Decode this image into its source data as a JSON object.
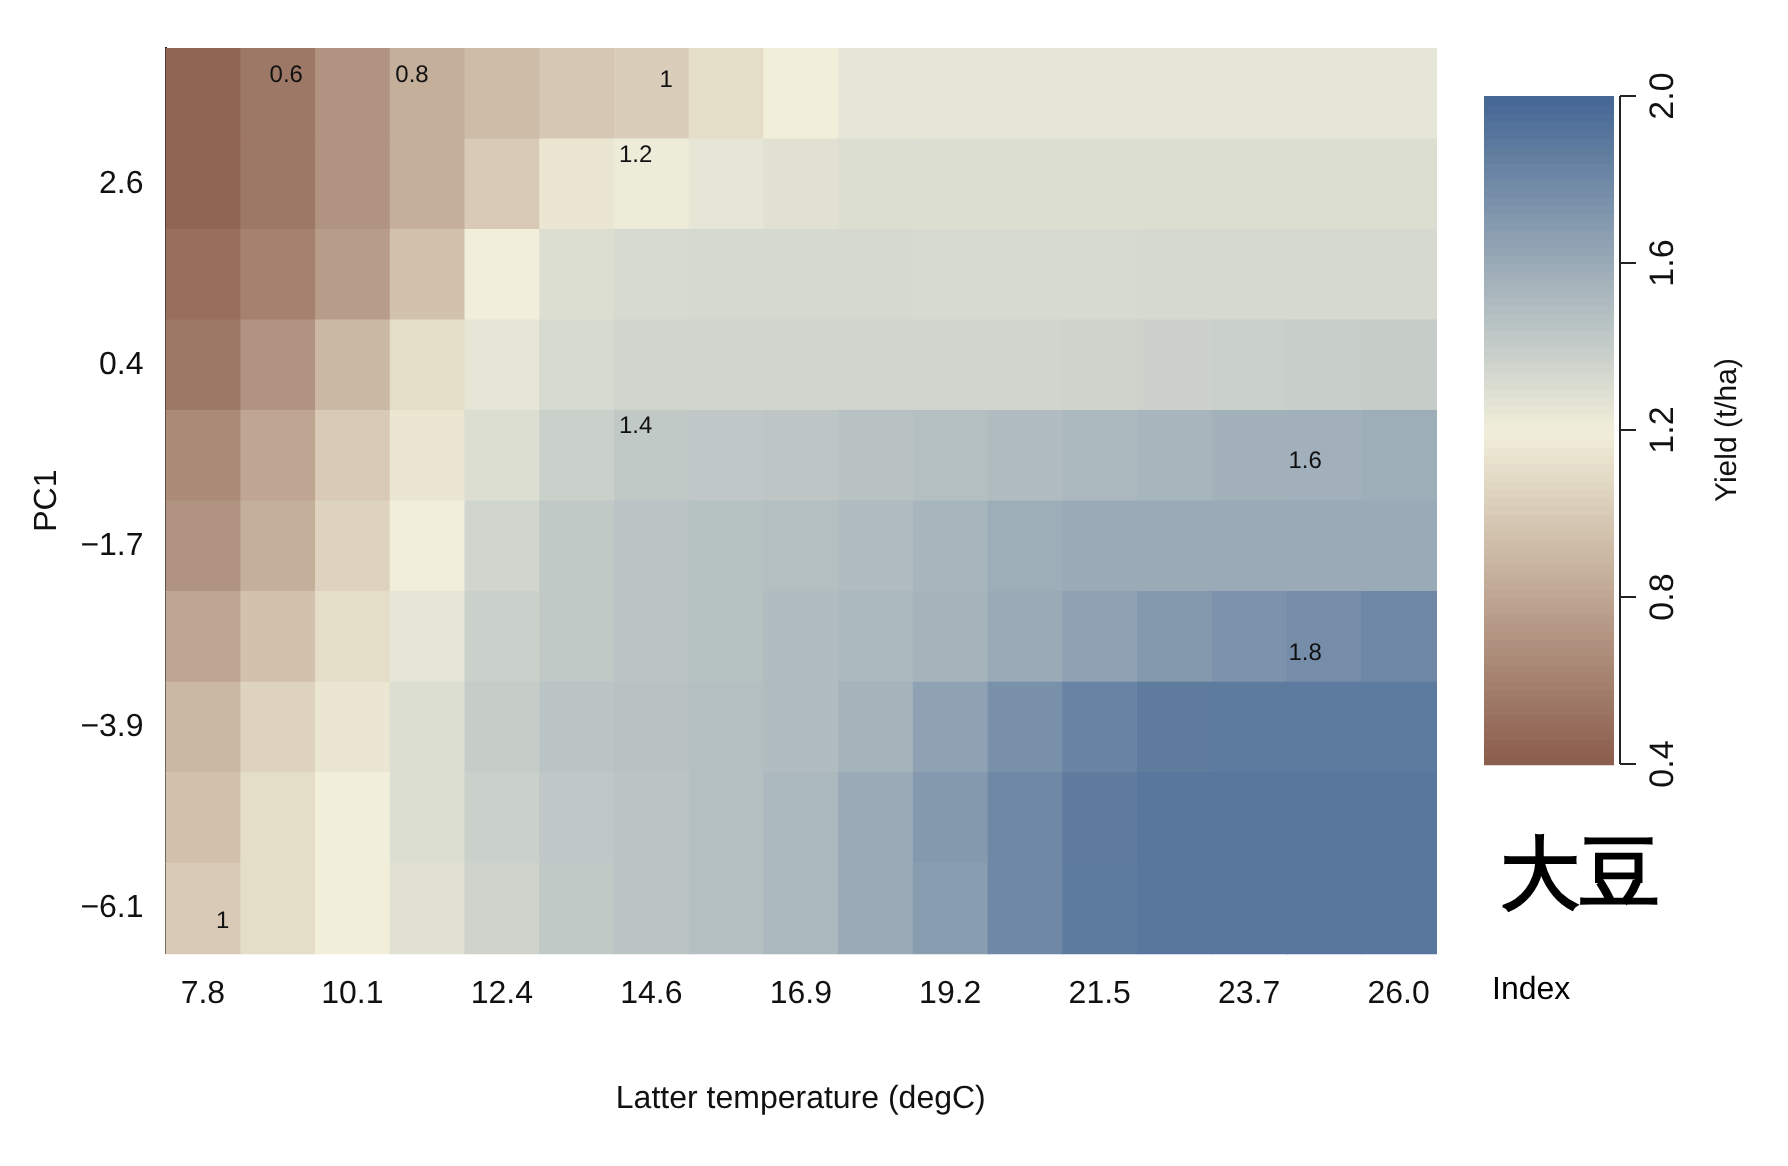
{
  "chart_data": {
    "type": "heatmap",
    "xlabel": "Latter temperature (degC)",
    "ylabel": "PC1",
    "clabel": "Yield (t/ha)",
    "categories": [
      "7.8",
      null,
      "10.1",
      null,
      "12.4",
      null,
      "14.6",
      null,
      "16.9",
      null,
      "19.2",
      null,
      "21.5",
      null,
      "23.7",
      null,
      "26.0"
    ],
    "y_categories": [
      null,
      "2.6",
      null,
      "0.4",
      null,
      "−1.7",
      null,
      "−3.9",
      null,
      "−6.1"
    ],
    "cells": [
      [
        0.45,
        0.55,
        0.7,
        0.85,
        0.92,
        0.98,
        1.02,
        1.1,
        1.2,
        1.25,
        1.25,
        1.25,
        1.25,
        1.25,
        1.25,
        1.25,
        1.25
      ],
      [
        0.45,
        0.55,
        0.7,
        0.85,
        1.0,
        1.15,
        1.22,
        1.25,
        1.28,
        1.3,
        1.3,
        1.3,
        1.3,
        1.3,
        1.3,
        1.3,
        1.3
      ],
      [
        0.5,
        0.6,
        0.75,
        0.95,
        1.2,
        1.3,
        1.32,
        1.33,
        1.33,
        1.33,
        1.32,
        1.32,
        1.32,
        1.33,
        1.33,
        1.33,
        1.33
      ],
      [
        0.55,
        0.7,
        0.9,
        1.1,
        1.25,
        1.32,
        1.35,
        1.35,
        1.35,
        1.35,
        1.35,
        1.35,
        1.36,
        1.37,
        1.38,
        1.39,
        1.4
      ],
      [
        0.65,
        0.8,
        1.0,
        1.15,
        1.3,
        1.38,
        1.42,
        1.43,
        1.44,
        1.46,
        1.48,
        1.5,
        1.52,
        1.54,
        1.56,
        1.57,
        1.58
      ],
      [
        0.7,
        0.85,
        1.05,
        1.2,
        1.35,
        1.42,
        1.45,
        1.47,
        1.48,
        1.5,
        1.54,
        1.58,
        1.6,
        1.6,
        1.6,
        1.6,
        1.6
      ],
      [
        0.8,
        0.95,
        1.1,
        1.25,
        1.38,
        1.42,
        1.45,
        1.47,
        1.5,
        1.52,
        1.55,
        1.6,
        1.65,
        1.7,
        1.74,
        1.77,
        1.8
      ],
      [
        0.9,
        1.05,
        1.15,
        1.3,
        1.4,
        1.45,
        1.46,
        1.48,
        1.5,
        1.55,
        1.65,
        1.75,
        1.83,
        1.87,
        1.88,
        1.88,
        1.88
      ],
      [
        0.95,
        1.1,
        1.2,
        1.3,
        1.38,
        1.43,
        1.45,
        1.48,
        1.52,
        1.6,
        1.7,
        1.8,
        1.87,
        1.9,
        1.9,
        1.9,
        1.9
      ],
      [
        1.0,
        1.1,
        1.2,
        1.28,
        1.36,
        1.42,
        1.45,
        1.48,
        1.52,
        1.6,
        1.68,
        1.8,
        1.88,
        1.9,
        1.9,
        1.9,
        1.9
      ]
    ],
    "clim": [
      0.4,
      2.0
    ],
    "cticks": [
      0.4,
      0.8,
      1.2,
      1.6,
      {
        "value": 2,
        "label": "2.0"
      }
    ],
    "annotations": [
      "0.6",
      "0.8",
      "1",
      "1.2",
      "1.4",
      "1.6",
      "1.8",
      "1",
      "大豆",
      "Index"
    ]
  }
}
